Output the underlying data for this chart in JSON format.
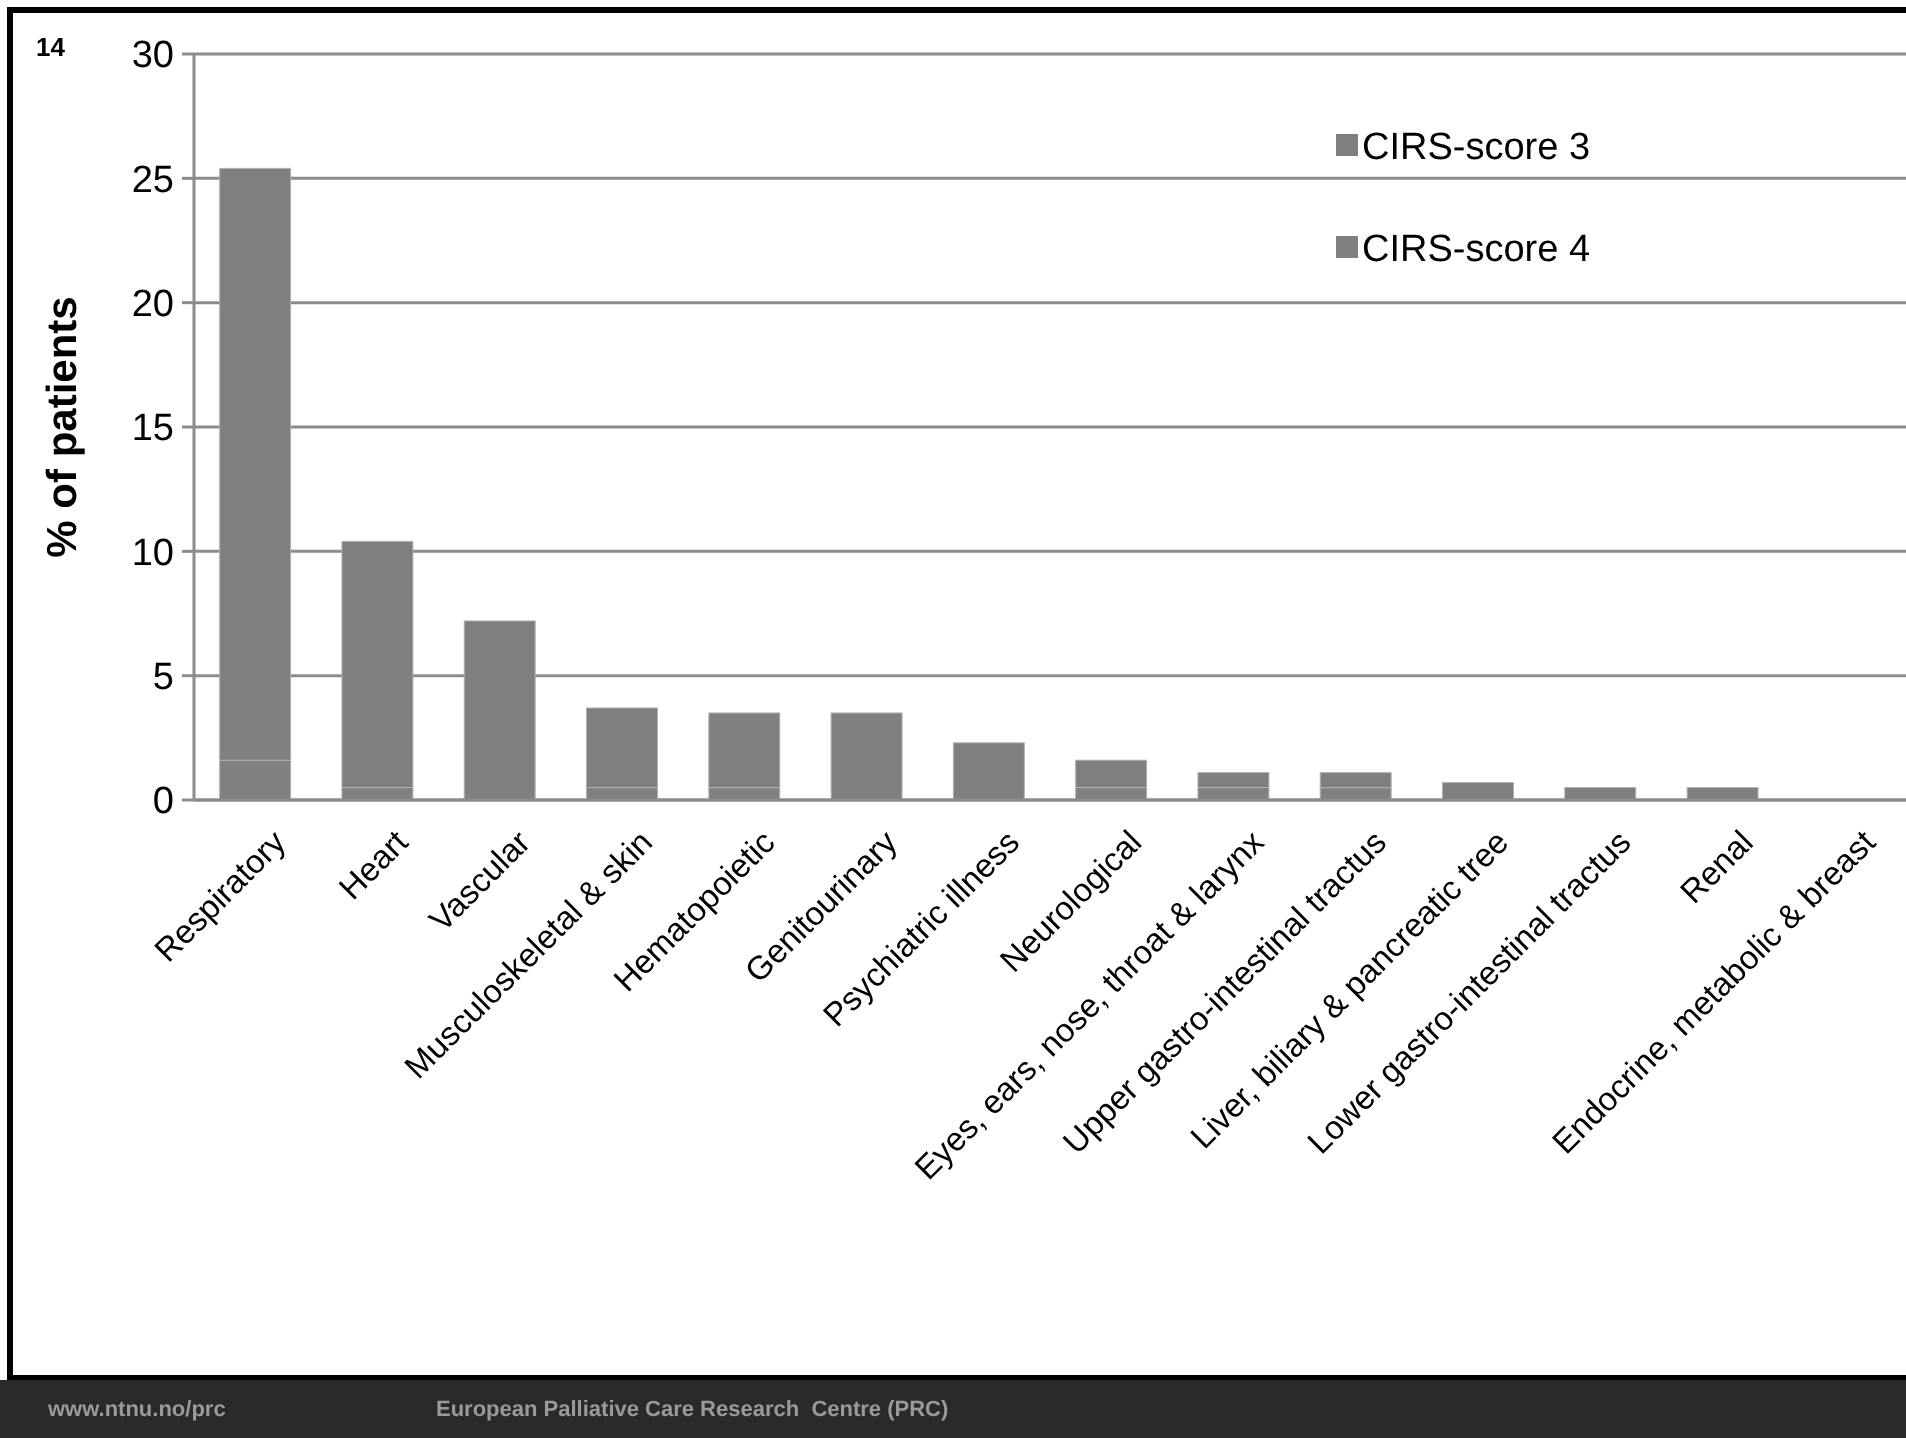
{
  "chart_data": {
    "type": "bar",
    "stacked": true,
    "ylabel": "% of patients",
    "categories": [
      "Respiratory",
      "Heart",
      "Vascular",
      "Musculoskeletal & skin",
      "Hematopoietic",
      "Genitourinary",
      "Psychiatric illness",
      "Neurological",
      "Eyes, ears, nose, throat & larynx",
      "Upper gastro-intestinal tractus",
      "Liver, biliary & pancreatic tree",
      "Lower gastro-intestinal tractus",
      "Renal",
      "Endocrine, metabolic & breast"
    ],
    "series": [
      {
        "name": "CIRS-score 4",
        "color": "#808080",
        "values": [
          1.6,
          0.5,
          0,
          0.5,
          0.5,
          0,
          0,
          0.5,
          0.5,
          0.5,
          0,
          0,
          0,
          0
        ]
      },
      {
        "name": "CIRS-score 3",
        "color": "#7f7f7f",
        "values": [
          23.8,
          9.9,
          7.2,
          3.2,
          3.0,
          3.5,
          2.3,
          1.1,
          0.6,
          0.6,
          0.7,
          0.5,
          0.5,
          0
        ]
      }
    ],
    "ylim": [
      0,
      30
    ],
    "yticks": [
      0,
      5,
      10,
      15,
      20,
      25,
      30
    ],
    "grid": "y",
    "legend": "top right",
    "annotations": [
      "14",
      "www.ntnu.no/prc",
      "European Palliative Care Research  Centre (PRC)"
    ]
  }
}
